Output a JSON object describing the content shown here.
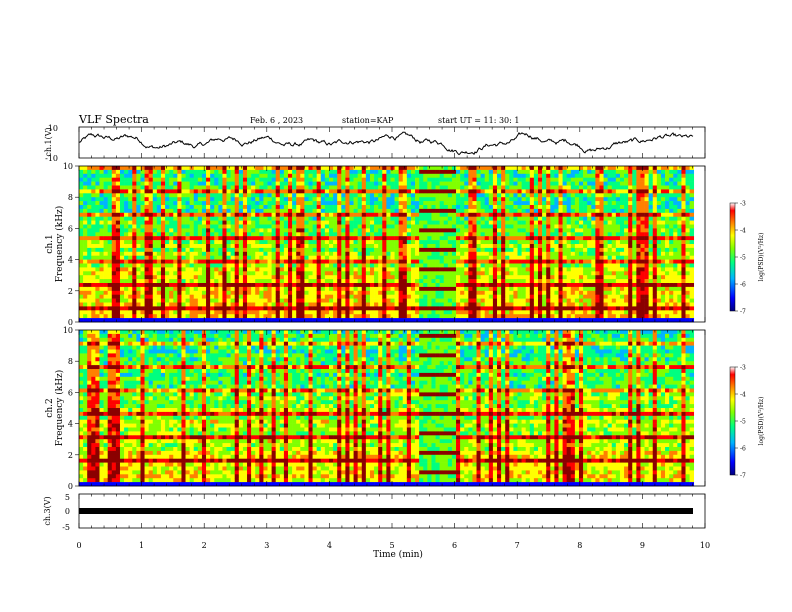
{
  "header": {
    "title": "VLF Spectra",
    "date": "Feb. 6 , 2023",
    "station": "station=KAP",
    "start_ut": "start UT =  11: 30: 1"
  },
  "chart_data": [
    {
      "type": "line",
      "name": "ch1-waveform",
      "ylabel": "ch.1(V)",
      "ylim": [
        -10,
        10
      ],
      "yticks": [
        "10",
        "-10"
      ],
      "x_range_min": [
        0,
        9.82
      ]
    },
    {
      "type": "heatmap",
      "name": "ch1-spectrogram",
      "ylabel": "ch.1\nFrequency (kHz)",
      "ylabel_lines": [
        "ch.1",
        "Frequency (kHz)"
      ],
      "ylim": [
        0,
        10
      ],
      "yticks": [
        "0",
        "2",
        "4",
        "6",
        "8",
        "10"
      ],
      "colorbar": {
        "label": "log(PSD)(V²/Hz)",
        "range": [
          -7,
          -3
        ],
        "ticks": [
          "-3",
          "-4",
          "-5",
          "-6",
          "-7"
        ]
      }
    },
    {
      "type": "heatmap",
      "name": "ch2-spectrogram",
      "ylabel_lines": [
        "ch.2",
        "Frequency (kHz)"
      ],
      "ylim": [
        0,
        10
      ],
      "yticks": [
        "0",
        "2",
        "4",
        "6",
        "8",
        "10"
      ],
      "colorbar": {
        "label": "log(PSD)(V²/Hz)",
        "range": [
          -7,
          -3
        ],
        "ticks": [
          "-3",
          "-4",
          "-5",
          "-6",
          "-7"
        ]
      }
    },
    {
      "type": "line",
      "name": "ch3-waveform",
      "ylabel": "ch.3(V)",
      "ylim": [
        -5,
        5
      ],
      "yticks": [
        "5",
        "0",
        "-5"
      ],
      "x_range_min": [
        0,
        9.82
      ]
    }
  ],
  "xaxis": {
    "label": "Time (min)",
    "range": [
      0,
      10
    ],
    "ticks": [
      "0",
      "1",
      "2",
      "3",
      "4",
      "5",
      "6",
      "7",
      "8",
      "9",
      "10"
    ]
  },
  "colors": {
    "colormap": [
      "#00007f",
      "#0000ff",
      "#00b4ff",
      "#00ff80",
      "#80ff00",
      "#ffff00",
      "#ff8000",
      "#ff0000",
      "#8b0000"
    ]
  }
}
